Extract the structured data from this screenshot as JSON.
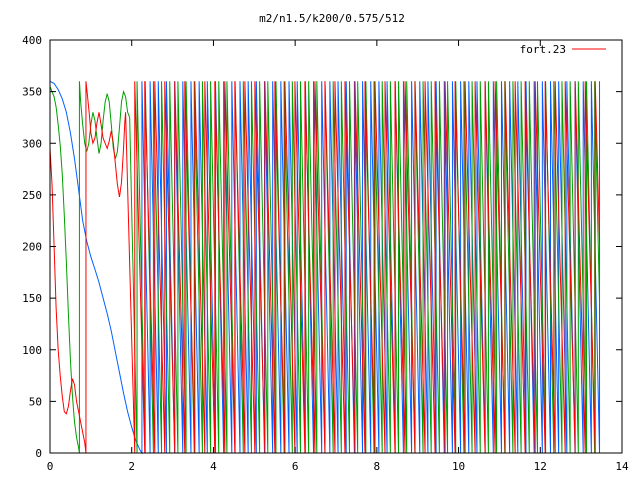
{
  "chart_data": {
    "type": "line",
    "title": "m2/n1.5/k200/0.575/512",
    "xlabel": "",
    "ylabel": "",
    "xlim": [
      0,
      14
    ],
    "ylim": [
      0,
      400
    ],
    "xticks": [
      "0",
      "2",
      "4",
      "6",
      "8",
      "10",
      "12",
      "14"
    ],
    "yticks": [
      "0",
      "50",
      "100",
      "150",
      "200",
      "250",
      "300",
      "350",
      "400"
    ],
    "grid": false,
    "legend": {
      "position": "top-right",
      "entries": [
        {
          "label": "fort.23",
          "color": "#ff0000"
        }
      ]
    },
    "x_end": 13.45,
    "series": [
      {
        "color": "#ff0000",
        "regime_change_x": 1.85,
        "settle_points": [
          [
            0.0,
            295
          ],
          [
            0.05,
            260
          ],
          [
            0.1,
            200
          ],
          [
            0.15,
            140
          ],
          [
            0.2,
            100
          ],
          [
            0.25,
            75
          ],
          [
            0.3,
            55
          ],
          [
            0.35,
            40
          ],
          [
            0.4,
            38
          ],
          [
            0.45,
            45
          ],
          [
            0.5,
            60
          ],
          [
            0.55,
            72
          ],
          [
            0.6,
            66
          ],
          [
            0.65,
            50
          ],
          [
            0.7,
            40
          ],
          [
            0.75,
            30
          ],
          [
            0.8,
            20
          ],
          [
            0.85,
            10
          ],
          [
            0.88,
            0
          ],
          [
            0.88,
            360
          ],
          [
            0.92,
            345
          ],
          [
            0.97,
            325
          ],
          [
            1.0,
            310
          ],
          [
            1.05,
            300
          ],
          [
            1.1,
            305
          ],
          [
            1.15,
            320
          ],
          [
            1.2,
            330
          ],
          [
            1.25,
            318
          ],
          [
            1.3,
            305
          ],
          [
            1.35,
            300
          ],
          [
            1.4,
            295
          ],
          [
            1.45,
            302
          ],
          [
            1.5,
            312
          ],
          [
            1.55,
            300
          ],
          [
            1.6,
            280
          ],
          [
            1.65,
            260
          ],
          [
            1.7,
            248
          ],
          [
            1.75,
            262
          ],
          [
            1.8,
            295
          ],
          [
            1.83,
            320
          ],
          [
            1.85,
            330
          ]
        ],
        "wrap_period": 0.245,
        "wrap_phase": 0.0
      },
      {
        "color": "#00a000",
        "regime_change_x": 1.95,
        "settle_points": [
          [
            0.0,
            355
          ],
          [
            0.05,
            350
          ],
          [
            0.1,
            345
          ],
          [
            0.15,
            335
          ],
          [
            0.2,
            318
          ],
          [
            0.25,
            298
          ],
          [
            0.3,
            270
          ],
          [
            0.35,
            230
          ],
          [
            0.4,
            185
          ],
          [
            0.45,
            135
          ],
          [
            0.5,
            90
          ],
          [
            0.55,
            55
          ],
          [
            0.6,
            30
          ],
          [
            0.65,
            15
          ],
          [
            0.7,
            5
          ],
          [
            0.72,
            0
          ],
          [
            0.72,
            360
          ],
          [
            0.75,
            340
          ],
          [
            0.8,
            318
          ],
          [
            0.85,
            300
          ],
          [
            0.9,
            292
          ],
          [
            0.95,
            300
          ],
          [
            1.0,
            318
          ],
          [
            1.05,
            330
          ],
          [
            1.1,
            322
          ],
          [
            1.15,
            305
          ],
          [
            1.2,
            290
          ],
          [
            1.25,
            300
          ],
          [
            1.3,
            322
          ],
          [
            1.35,
            340
          ],
          [
            1.4,
            348
          ],
          [
            1.45,
            340
          ],
          [
            1.5,
            318
          ],
          [
            1.55,
            295
          ],
          [
            1.6,
            285
          ],
          [
            1.65,
            292
          ],
          [
            1.7,
            315
          ],
          [
            1.75,
            340
          ],
          [
            1.8,
            350
          ],
          [
            1.85,
            345
          ],
          [
            1.9,
            330
          ],
          [
            1.95,
            325
          ]
        ],
        "wrap_period": 0.2,
        "wrap_phase": 0.02
      },
      {
        "color": "#0060ff",
        "regime_change_x": 2.25,
        "settle_points": [
          [
            0.0,
            360
          ],
          [
            0.1,
            358
          ],
          [
            0.2,
            352
          ],
          [
            0.3,
            343
          ],
          [
            0.4,
            330
          ],
          [
            0.5,
            310
          ],
          [
            0.6,
            285
          ],
          [
            0.7,
            255
          ],
          [
            0.8,
            225
          ],
          [
            0.9,
            205
          ],
          [
            1.0,
            190
          ],
          [
            1.1,
            178
          ],
          [
            1.2,
            165
          ],
          [
            1.3,
            150
          ],
          [
            1.4,
            135
          ],
          [
            1.5,
            118
          ],
          [
            1.6,
            98
          ],
          [
            1.7,
            78
          ],
          [
            1.8,
            58
          ],
          [
            1.9,
            40
          ],
          [
            2.0,
            25
          ],
          [
            2.1,
            12
          ],
          [
            2.2,
            3
          ],
          [
            2.25,
            0
          ]
        ],
        "wrap_period": 0.2,
        "wrap_phase": 0.1
      }
    ]
  }
}
